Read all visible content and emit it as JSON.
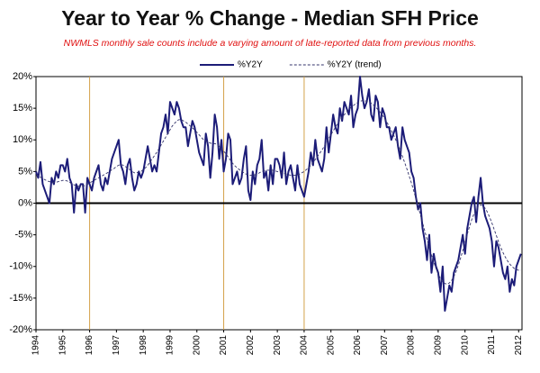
{
  "chart_data": {
    "type": "line",
    "title": "Year to Year % Change - Median SFH Price",
    "subtitle": "NWMLS monthly sale counts include a varying amount of late-reported  data from previous months.",
    "categories": [
      "1994",
      null,
      null,
      null,
      null,
      null,
      null,
      null,
      null,
      null,
      null,
      null,
      "1995",
      null,
      null,
      null,
      null,
      null,
      null,
      null,
      null,
      null,
      null,
      null,
      "1996",
      null,
      null,
      null,
      null,
      null,
      null,
      null,
      null,
      null,
      null,
      null,
      "1997",
      null,
      null,
      null,
      null,
      null,
      null,
      null,
      null,
      null,
      null,
      null,
      "1998",
      null,
      null,
      null,
      null,
      null,
      null,
      null,
      null,
      null,
      null,
      null,
      "1999",
      null,
      null,
      null,
      null,
      null,
      null,
      null,
      null,
      null,
      null,
      null,
      "2000",
      null,
      null,
      null,
      null,
      null,
      null,
      null,
      null,
      null,
      null,
      null,
      "2001",
      null,
      null,
      null,
      null,
      null,
      null,
      null,
      null,
      null,
      null,
      null,
      "2002",
      null,
      null,
      null,
      null,
      null,
      null,
      null,
      null,
      null,
      null,
      null,
      "2003",
      null,
      null,
      null,
      null,
      null,
      null,
      null,
      null,
      null,
      null,
      null,
      "2004",
      null,
      null,
      null,
      null,
      null,
      null,
      null,
      null,
      null,
      null,
      null,
      "2005",
      null,
      null,
      null,
      null,
      null,
      null,
      null,
      null,
      null,
      null,
      null,
      "2006",
      null,
      null,
      null,
      null,
      null,
      null,
      null,
      null,
      null,
      null,
      null,
      "2007",
      null,
      null,
      null,
      null,
      null,
      null,
      null,
      null,
      null,
      null,
      null,
      "2008",
      null,
      null,
      null,
      null,
      null,
      null,
      null,
      null,
      null,
      null,
      null,
      "2009",
      null,
      null,
      null,
      null,
      null,
      null,
      null,
      null,
      null,
      null,
      null,
      "2010",
      null,
      null,
      null,
      null,
      null,
      null,
      null,
      null,
      null,
      null,
      null,
      "2011",
      null,
      null,
      null,
      null,
      null,
      null,
      null,
      null,
      null,
      null,
      null,
      "2012",
      null
    ],
    "series": [
      {
        "name": "%Y2Y",
        "color": "#1c1c78",
        "dashed": false,
        "values": [
          5,
          4,
          6.5,
          3,
          2,
          1,
          0,
          4,
          3,
          5,
          4,
          6,
          6,
          5,
          7,
          4,
          3,
          -1.5,
          3,
          2,
          3,
          3,
          -1.5,
          4,
          3,
          2,
          4,
          5,
          6,
          3,
          2,
          4,
          3,
          5,
          7,
          8,
          9,
          10,
          6,
          5,
          3,
          6,
          7,
          4,
          2,
          3,
          5,
          4,
          5,
          7,
          9,
          7,
          5,
          6,
          5,
          8,
          11,
          12,
          14,
          11,
          16,
          15,
          14,
          16,
          15,
          13,
          12,
          12,
          9,
          11,
          13,
          12,
          10,
          8,
          7,
          6,
          11,
          9,
          4,
          8,
          14,
          12,
          7,
          10,
          5,
          7,
          11,
          10,
          3,
          4,
          5,
          3,
          4,
          7,
          9,
          2,
          0.5,
          5,
          3,
          6,
          7,
          10,
          4,
          5,
          2,
          6,
          3,
          7,
          7,
          6,
          4,
          8,
          3,
          5,
          6,
          4,
          2,
          6,
          3,
          2,
          1,
          3,
          5,
          8,
          6,
          10,
          7,
          6,
          5,
          7,
          12,
          8,
          11,
          14,
          12,
          11,
          15,
          13,
          16,
          15,
          14,
          17,
          12,
          14,
          15,
          20,
          17,
          15,
          16,
          18,
          14,
          13,
          17,
          16,
          12,
          15,
          14,
          12,
          12,
          10,
          11,
          12,
          9,
          7,
          12,
          10,
          9,
          8,
          5,
          4,
          1,
          -1,
          0,
          -4,
          -6,
          -9,
          -5,
          -11,
          -8,
          -10,
          -11,
          -14,
          -10,
          -17,
          -15,
          -13,
          -14,
          -11,
          -10,
          -9,
          -7,
          -5,
          -8,
          -4,
          -2,
          0,
          1,
          -3,
          1,
          4,
          0,
          -2,
          -3,
          -4,
          -6,
          -10,
          -6,
          -7,
          -9,
          -11,
          -12,
          -10,
          -14,
          -12,
          -13,
          -10,
          -9,
          -8
        ]
      },
      {
        "name": "%Y2Y (trend)",
        "color": "#33336b",
        "dashed": true,
        "values": [
          4.5,
          4.3,
          4.1,
          3.9,
          3.7,
          3.5,
          3.4,
          3.3,
          3.3,
          3.3,
          3.4,
          3.5,
          3.6,
          3.6,
          3.5,
          3.3,
          3.1,
          2.9,
          2.8,
          2.7,
          2.7,
          2.7,
          2.8,
          3.0,
          3.2,
          3.4,
          3.6,
          3.8,
          4.0,
          4.2,
          4.4,
          4.6,
          4.8,
          5.0,
          5.3,
          5.5,
          5.8,
          6.0,
          6.1,
          6.0,
          5.8,
          5.5,
          5.3,
          5.0,
          4.8,
          4.8,
          4.9,
          5.0,
          5.3,
          5.6,
          6.0,
          6.5,
          7.0,
          7.5,
          8.0,
          8.6,
          9.2,
          9.8,
          10.4,
          11.0,
          11.6,
          12.2,
          12.6,
          13.0,
          13.2,
          13.2,
          13.0,
          12.8,
          12.5,
          12.2,
          11.9,
          11.6,
          11.2,
          10.8,
          10.4,
          10.0,
          9.8,
          9.6,
          9.5,
          9.4,
          9.4,
          9.3,
          9.0,
          8.6,
          8.2,
          7.8,
          7.3,
          6.8,
          6.3,
          5.9,
          5.6,
          5.3,
          5.0,
          4.8,
          4.6,
          4.5,
          4.4,
          4.4,
          4.5,
          4.6,
          4.8,
          5.0,
          5.1,
          5.2,
          5.2,
          5.2,
          5.2,
          5.1,
          5.0,
          4.9,
          4.8,
          4.7,
          4.6,
          4.5,
          4.4,
          4.4,
          4.4,
          4.5,
          4.6,
          4.8,
          5.0,
          5.3,
          5.6,
          6.0,
          6.4,
          6.9,
          7.4,
          7.9,
          8.4,
          9.0,
          9.6,
          10.2,
          10.8,
          11.4,
          12.0,
          12.6,
          13.1,
          13.6,
          14.0,
          14.4,
          14.8,
          15.1,
          15.4,
          15.7,
          15.9,
          16.1,
          16.2,
          16.2,
          16.1,
          16.0,
          15.8,
          15.5,
          15.2,
          14.8,
          14.4,
          13.9,
          13.4,
          12.8,
          12.2,
          11.5,
          10.8,
          10.0,
          9.2,
          8.3,
          7.4,
          6.4,
          5.4,
          4.3,
          3.2,
          2.0,
          0.8,
          -0.5,
          -1.8,
          -3.1,
          -4.4,
          -5.7,
          -7.0,
          -8.2,
          -9.3,
          -10.3,
          -11.2,
          -11.9,
          -12.4,
          -12.7,
          -12.8,
          -12.6,
          -12.2,
          -11.6,
          -10.8,
          -9.8,
          -8.7,
          -7.5,
          -6.2,
          -4.9,
          -3.7,
          -2.6,
          -1.7,
          -1.0,
          -0.5,
          -0.3,
          -0.4,
          -0.8,
          -1.4,
          -2.2,
          -3.1,
          -4.1,
          -5.1,
          -6.1,
          -7.0,
          -7.8,
          -8.5,
          -9.1,
          -9.6,
          -10.0,
          -10.3,
          -10.5,
          -10.6,
          -10.6
        ]
      }
    ],
    "ylim": [
      -20,
      20
    ],
    "yticks": [
      {
        "value": -20,
        "label": "-20%"
      },
      {
        "value": -15,
        "label": "-15%"
      },
      {
        "value": -10,
        "label": "-10%"
      },
      {
        "value": -5,
        "label": "-5%"
      },
      {
        "value": 0,
        "label": "0%"
      },
      {
        "value": 5,
        "label": "5%"
      },
      {
        "value": 10,
        "label": "10%"
      },
      {
        "value": 15,
        "label": "15%"
      },
      {
        "value": 20,
        "label": "20%"
      }
    ],
    "zero_line": true,
    "reference_lines": {
      "x": [
        24,
        84,
        120
      ],
      "color": "#d4a24a"
    },
    "legend": "top"
  }
}
